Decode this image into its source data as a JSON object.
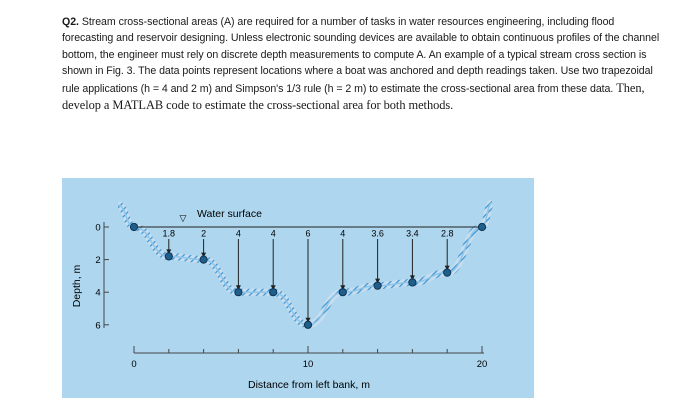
{
  "question": {
    "number": "Q2.",
    "text_part1": " Stream cross-sectional areas (A) are required for a number of tasks in water resources engineering, including flood forecasting and reservoir designing. Unless electronic sounding devices are available to obtain continuous profiles of the channel bottom, the engineer must rely on discrete depth measurements to compute A. An example of a typical stream cross section is shown in Fig. 3. The data points represent locations where a boat was anchored and depth readings taken. Use two trapezoidal rule applications (h = 4 and 2 m) and Simpson's 1/3 rule (h = 2 m) to estimate the cross-sectional area from these data. ",
    "text_part2": "Then, develop a MATLAB code to estimate the cross-sectional area for both methods."
  },
  "figure": {
    "background_color": "#aed7ef",
    "water_line_label": "Water surface",
    "water_symbol": "▽",
    "y_axis_label": "Depth, m",
    "x_axis_label": "Distance from left bank, m",
    "y_ticks": [
      "0",
      "2",
      "4",
      "6"
    ],
    "x_ticks": [
      "0",
      "10",
      "20"
    ],
    "depth_labels": [
      "1.8",
      "2",
      "4",
      "4",
      "6",
      "4",
      "3.6",
      "3.4",
      "2.8"
    ]
  },
  "chart_data": {
    "type": "line",
    "title": "",
    "xlabel": "Distance from left bank, m",
    "ylabel": "Depth, m",
    "x": [
      0,
      2,
      4,
      6,
      8,
      10,
      12,
      14,
      16,
      18,
      20
    ],
    "depths": [
      0,
      1.8,
      2,
      4,
      4,
      6,
      4,
      3.6,
      3.4,
      2.8,
      0
    ],
    "xlim": [
      0,
      20
    ],
    "ylim": [
      0,
      6
    ],
    "y_inverted": true
  }
}
